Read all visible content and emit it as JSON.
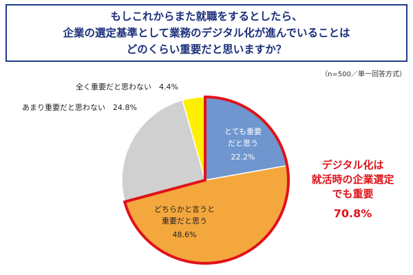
{
  "title": {
    "lines": [
      "もしこれからまた就職をするとしたら、",
      "企業の選定基準として業務のデジタル化が進んでいることは",
      "どのくらい重要だと思いますか？"
    ]
  },
  "note": "（n=500／単一回答方式）",
  "chart_data": {
    "type": "pie",
    "slices": [
      {
        "label": "とても重要だと思う",
        "label_lines": [
          "とても重要",
          "だと思う"
        ],
        "value": 22.2,
        "display": "22.2%",
        "color": "#6f96cf",
        "highlight": true
      },
      {
        "label": "どちらかと言うと重要だと思う",
        "label_lines": [
          "どちらかと言うと",
          "重要だと思う"
        ],
        "value": 48.6,
        "display": "48.6%",
        "color": "#f4a73d",
        "highlight": true
      },
      {
        "label": "あまり重要だと思わない",
        "label_lines": [
          "あまり重要だと思わない"
        ],
        "value": 24.8,
        "display": "24.8%",
        "color": "#d0d0d0",
        "highlight": false
      },
      {
        "label": "全く重要だと思わない",
        "label_lines": [
          "全く重要だと思わない"
        ],
        "value": 4.4,
        "display": "4.4%",
        "color": "#ffef00",
        "highlight": false
      }
    ],
    "start_angle_deg": 0,
    "direction": "clockwise",
    "highlight_color": "#e0121b"
  },
  "callout": {
    "lines": [
      "デジタル化は",
      "就活時の企業選定",
      "でも重要"
    ],
    "value": "70.8",
    "unit": "%",
    "color": "#e0121b"
  }
}
